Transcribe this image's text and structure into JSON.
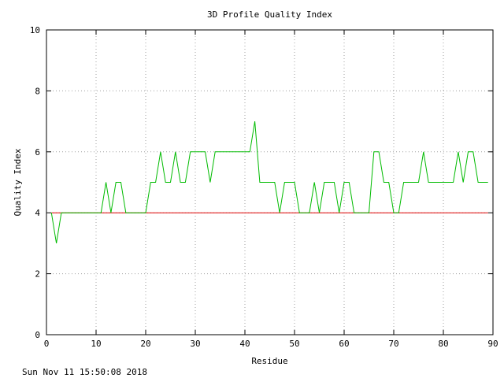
{
  "chart_data": {
    "type": "line",
    "title": "3D Profile Quality Index",
    "xlabel": "Residue",
    "ylabel": "Quality Index",
    "xlim": [
      0,
      90
    ],
    "ylim": [
      0,
      10
    ],
    "xticks": [
      0,
      10,
      20,
      30,
      40,
      50,
      60,
      70,
      80,
      90
    ],
    "yticks": [
      0,
      2,
      4,
      6,
      8,
      10
    ],
    "grid": true,
    "colors": {
      "quality": "#00bb00",
      "threshold": "#dd0000"
    },
    "series": [
      {
        "x": [
          1,
          2,
          3,
          4,
          5,
          6,
          7,
          8,
          9,
          10,
          11,
          12,
          13,
          14,
          15,
          16,
          17,
          18,
          19,
          20,
          21,
          22,
          23,
          24,
          25,
          26,
          27,
          28,
          29,
          30,
          31,
          32,
          33,
          34,
          35,
          36,
          37,
          38,
          39,
          40,
          41,
          42,
          43,
          44,
          45,
          46,
          47,
          48,
          49,
          50,
          51,
          52,
          53,
          54,
          55,
          56,
          57,
          58,
          59,
          60,
          61,
          62,
          63,
          64,
          65,
          66,
          67,
          68,
          69,
          70,
          71,
          72,
          73,
          74,
          75,
          76,
          77,
          78,
          79,
          80,
          81,
          82,
          83,
          84,
          85,
          86,
          87,
          88,
          89
        ],
        "values": [
          4,
          3,
          4,
          4,
          4,
          4,
          4,
          4,
          4,
          4,
          4,
          5,
          4,
          5,
          5,
          4,
          4,
          4,
          4,
          4,
          5,
          5,
          6,
          5,
          5,
          6,
          5,
          5,
          6,
          6,
          6,
          6,
          5,
          6,
          6,
          6,
          6,
          6,
          6,
          6,
          6,
          7,
          5,
          5,
          5,
          5,
          4,
          5,
          5,
          5,
          4,
          4,
          4,
          5,
          4,
          5,
          5,
          5,
          4,
          5,
          5,
          4,
          4,
          4,
          4,
          6,
          6,
          5,
          5,
          4,
          4,
          5,
          5,
          5,
          5,
          6,
          5,
          5,
          5,
          5,
          5,
          5,
          6,
          5,
          6,
          6,
          5,
          5,
          5
        ]
      },
      {
        "x": [
          1,
          89
        ],
        "values": [
          4,
          4
        ]
      }
    ]
  },
  "timestamp": "Sun Nov 11 15:50:08 2018"
}
